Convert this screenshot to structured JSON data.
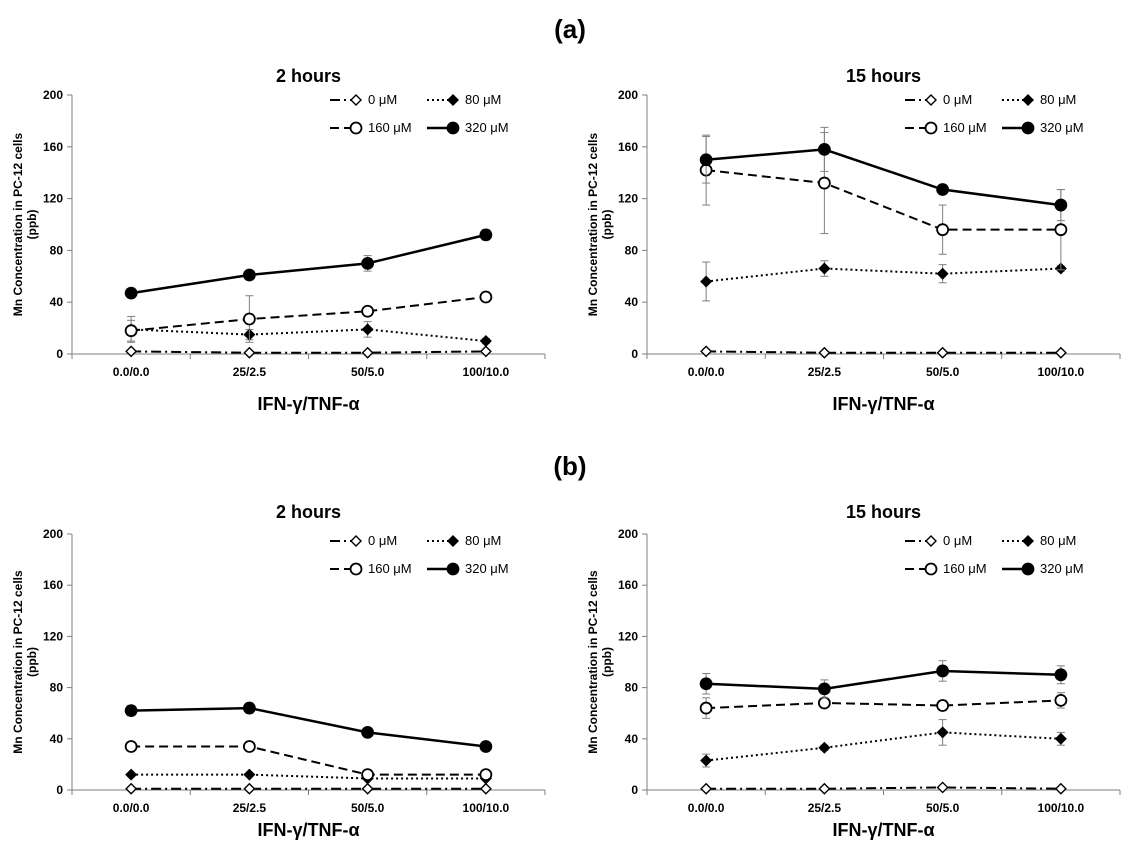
{
  "labels": {
    "a": "(a)",
    "b": "(b)"
  },
  "colors": {
    "ink": "#000000",
    "axis": "#7f7f7f",
    "background": "#ffffff"
  },
  "chart_data": [
    {
      "type": "line",
      "title": "2 hours",
      "xlabel": "IFN-γ/TNF-α",
      "ylabel": "Mn Concentration in PC-12 cells (ppb)",
      "ylim": [
        0,
        200
      ],
      "yticks": [
        0,
        40,
        80,
        120,
        160,
        200
      ],
      "categories": [
        "0.0/0.0",
        "25/2.5",
        "50/5.0",
        "100/10.0"
      ],
      "grid": false,
      "legend": "top-right",
      "series": [
        {
          "name": "0 μM",
          "style": "dashdot",
          "marker": "diamond-open",
          "values": [
            2,
            1,
            1,
            2
          ],
          "errors": [
            0,
            0,
            0,
            0
          ]
        },
        {
          "name": "80 μM",
          "style": "dotted",
          "marker": "diamond",
          "values": [
            19,
            15,
            19,
            10
          ],
          "errors": [
            10,
            4,
            6,
            2
          ]
        },
        {
          "name": "160 μM",
          "style": "dashed",
          "marker": "circle-open",
          "values": [
            18,
            27,
            33,
            44
          ],
          "errors": [
            8,
            18,
            2,
            2
          ]
        },
        {
          "name": "320 μM",
          "style": "solid",
          "marker": "circle",
          "values": [
            47,
            61,
            70,
            92
          ],
          "errors": [
            2,
            2,
            6,
            4
          ]
        }
      ]
    },
    {
      "type": "line",
      "title": "15 hours",
      "xlabel": "IFN-γ/TNF-α",
      "ylabel": "Mn Concentration in PC-12 cells (ppb)",
      "ylim": [
        0,
        200
      ],
      "yticks": [
        0,
        40,
        80,
        120,
        160,
        200
      ],
      "categories": [
        "0.0/0.0",
        "25/2.5",
        "50/5.0",
        "100/10.0"
      ],
      "grid": false,
      "legend": "top-right",
      "series": [
        {
          "name": "0 μM",
          "style": "dashdot",
          "marker": "diamond-open",
          "values": [
            2,
            1,
            1,
            1
          ],
          "errors": [
            0,
            0,
            0,
            0
          ]
        },
        {
          "name": "80 μM",
          "style": "dotted",
          "marker": "diamond",
          "values": [
            56,
            66,
            62,
            66
          ],
          "errors": [
            15,
            6,
            7,
            2
          ]
        },
        {
          "name": "160 μM",
          "style": "dashed",
          "marker": "circle-open",
          "values": [
            142,
            132,
            96,
            96
          ],
          "errors": [
            27,
            39,
            19,
            31
          ]
        },
        {
          "name": "320 μM",
          "style": "solid",
          "marker": "circle",
          "values": [
            150,
            158,
            127,
            115
          ],
          "errors": [
            18,
            17,
            2,
            12
          ]
        }
      ]
    },
    {
      "type": "line",
      "title": "2 hours",
      "xlabel": "IFN-γ/TNF-α",
      "ylabel": "Mn Concentration in PC-12 cells (ppb)",
      "ylim": [
        0,
        200
      ],
      "yticks": [
        0,
        40,
        80,
        120,
        160,
        200
      ],
      "categories": [
        "0.0/0.0",
        "25/2.5",
        "50/5.0",
        "100/10.0"
      ],
      "grid": false,
      "legend": "top-right",
      "series": [
        {
          "name": "0 μM",
          "style": "dashdot",
          "marker": "diamond-open",
          "values": [
            1,
            1,
            1,
            1
          ],
          "errors": [
            0,
            0,
            0,
            0
          ]
        },
        {
          "name": "80 μM",
          "style": "dotted",
          "marker": "diamond",
          "values": [
            12,
            12,
            9,
            9
          ],
          "errors": [
            1,
            1,
            1,
            1
          ]
        },
        {
          "name": "160 μM",
          "style": "dashed",
          "marker": "circle-open",
          "values": [
            34,
            34,
            12,
            12
          ],
          "errors": [
            1,
            1,
            1,
            1
          ]
        },
        {
          "name": "320 μM",
          "style": "solid",
          "marker": "circle",
          "values": [
            62,
            64,
            45,
            34
          ],
          "errors": [
            4,
            4,
            2,
            1
          ]
        }
      ]
    },
    {
      "type": "line",
      "title": "15 hours",
      "xlabel": "IFN-γ/TNF-α",
      "ylabel": "Mn Concentration in PC-12 cells (ppb)",
      "ylim": [
        0,
        200
      ],
      "yticks": [
        0,
        40,
        80,
        120,
        160,
        200
      ],
      "categories": [
        "0.0/0.0",
        "25/2.5",
        "50/5.0",
        "100/10.0"
      ],
      "grid": false,
      "legend": "top-right",
      "series": [
        {
          "name": "0 μM",
          "style": "dashdot",
          "marker": "diamond-open",
          "values": [
            1,
            1,
            2,
            1
          ],
          "errors": [
            0,
            0,
            0,
            0
          ]
        },
        {
          "name": "80 μM",
          "style": "dotted",
          "marker": "diamond",
          "values": [
            23,
            33,
            45,
            40
          ],
          "errors": [
            5,
            2,
            10,
            5
          ]
        },
        {
          "name": "160 μM",
          "style": "dashed",
          "marker": "circle-open",
          "values": [
            64,
            68,
            66,
            70
          ],
          "errors": [
            8,
            3,
            4,
            6
          ]
        },
        {
          "name": "320 μM",
          "style": "solid",
          "marker": "circle",
          "values": [
            83,
            79,
            93,
            90
          ],
          "errors": [
            8,
            7,
            8,
            7
          ]
        }
      ]
    }
  ]
}
